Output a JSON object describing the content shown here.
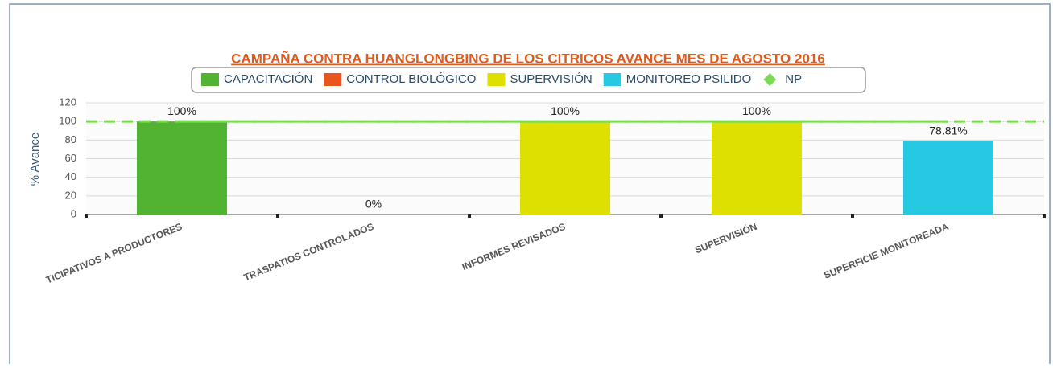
{
  "chart_data": {
    "type": "bar",
    "title": "CAMPAÑA CONTRA HUANGLONGBING DE LOS CITRICOS AVANCE MES DE AGOSTO 2016",
    "y_label": "% Avance",
    "categories": [
      "TICIPATIVOS A PRODUCTORES",
      "TRASPATIOS CONTROLADOS",
      "INFORMES REVISADOS",
      "SUPERVISIÓN",
      "SUPERFICIE MONITOREADA"
    ],
    "series": [
      {
        "name": "CAPACITACIÓN",
        "color": "#52b332",
        "values": [
          100,
          null,
          null,
          null,
          null
        ],
        "value_labels": [
          "100%",
          null,
          null,
          null,
          null
        ]
      },
      {
        "name": "CONTROL BIOLÓGICO",
        "color": "#e8561e",
        "values": [
          null,
          0,
          null,
          null,
          null
        ],
        "value_labels": [
          null,
          "0%",
          null,
          null,
          null
        ]
      },
      {
        "name": "SUPERVISIÓN",
        "color": "#dde000",
        "values": [
          null,
          null,
          100,
          100,
          null
        ],
        "value_labels": [
          null,
          null,
          "100%",
          "100%",
          null
        ]
      },
      {
        "name": "MONITOREO PSILIDO",
        "color": "#26c8e2",
        "values": [
          null,
          null,
          null,
          null,
          78.81
        ],
        "value_labels": [
          null,
          null,
          null,
          null,
          "78.81%"
        ]
      },
      {
        "name": "NP",
        "color": "#7ed957",
        "type": "line",
        "values": [
          100,
          100,
          100,
          100,
          100
        ]
      }
    ],
    "ylim": [
      0,
      120
    ],
    "yticks": [
      0,
      20,
      40,
      60,
      80,
      100,
      120
    ],
    "grid": true
  }
}
